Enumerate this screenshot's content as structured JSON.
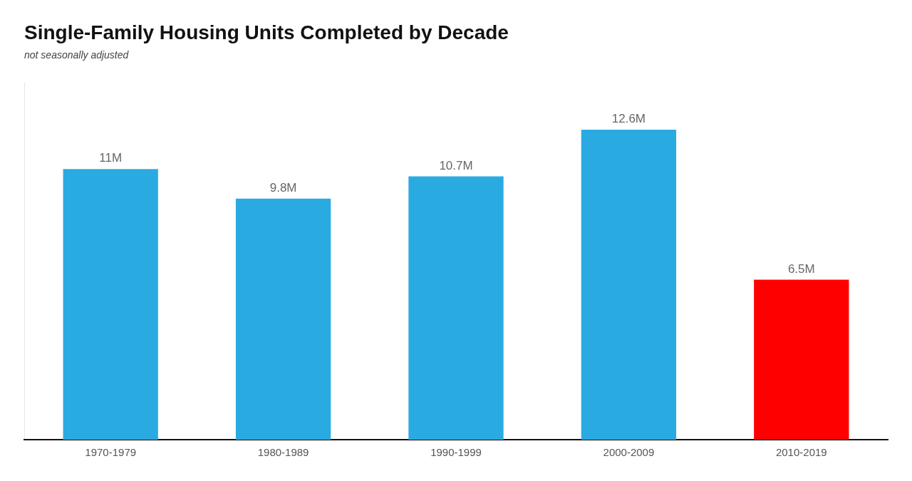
{
  "chart_data": {
    "type": "bar",
    "title": "Single-Family Housing Units Completed by Decade",
    "subtitle": "not seasonally adjusted",
    "categories": [
      "1970-1979",
      "1980-1989",
      "1990-1999",
      "2000-2009",
      "2010-2019"
    ],
    "values": [
      11.0,
      9.8,
      10.7,
      12.6,
      6.5
    ],
    "value_labels": [
      "11M",
      "9.8M",
      "10.7M",
      "12.6M",
      "6.5M"
    ],
    "colors": [
      "#29ABE2",
      "#29ABE2",
      "#29ABE2",
      "#29ABE2",
      "#FF0000"
    ],
    "ylim": [
      0,
      14.5
    ],
    "data_labels": true,
    "tick_labels": "x",
    "grid": false
  }
}
